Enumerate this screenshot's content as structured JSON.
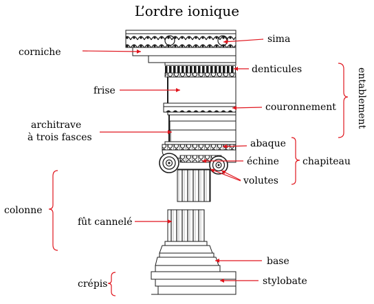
{
  "title": "L’ordre ionique",
  "labels": {
    "sima": "sima",
    "corniche": "corniche",
    "denticules": "denticules",
    "frise": "frise",
    "couronnement": "couronnement",
    "architrave_line1": "architrave",
    "architrave_line2": "à trois fasces",
    "abaque": "abaque",
    "echine": "échine",
    "volutes": "volutes",
    "chapiteau": "chapiteau",
    "colonne": "colonne",
    "fut": "fût cannelé",
    "base": "base",
    "crepis": "crépis",
    "stylobate": "stylobate",
    "entablement": "entablement"
  },
  "colors": {
    "arrow": "#e0151d",
    "ink": "#1a1a1a",
    "text": "#000000"
  }
}
